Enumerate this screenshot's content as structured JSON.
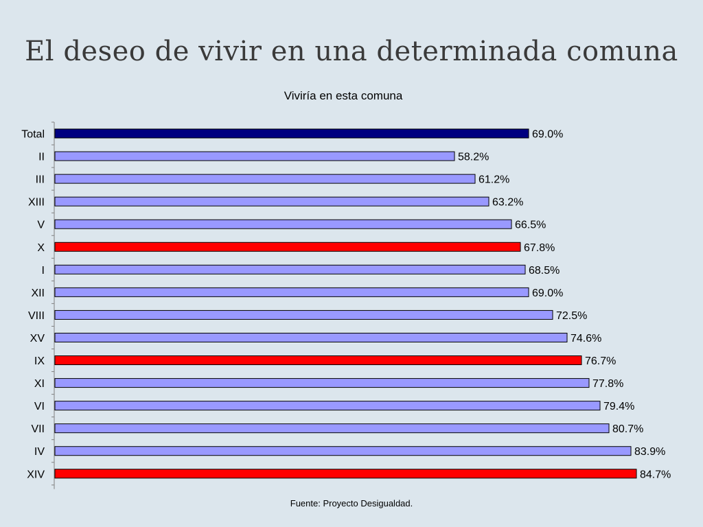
{
  "slide": {
    "title": "El deseo de vivir en una determinada comuna",
    "source": "Fuente: Proyecto Desigualdad."
  },
  "colors": {
    "default": "#9999ff",
    "highlight": "#ff0000",
    "total": "#000080",
    "border": "#000000",
    "background": "#dce6ed"
  },
  "chart_data": {
    "type": "bar",
    "orientation": "horizontal",
    "title": "Viviría en esta comuna",
    "xlim": [
      0,
      100
    ],
    "grid": false,
    "legend": "none",
    "categories": [
      "Total",
      "II",
      "III",
      "XIII",
      "V",
      "X",
      "I",
      "XII",
      "VIII",
      "XV",
      "IX",
      "XI",
      "VI",
      "VII",
      "IV",
      "XIV"
    ],
    "values": [
      69.0,
      58.2,
      61.2,
      63.2,
      66.5,
      67.8,
      68.5,
      69.0,
      72.5,
      74.6,
      76.7,
      77.8,
      79.4,
      80.7,
      83.9,
      84.7
    ],
    "labels": [
      "69.0%",
      "58.2%",
      "61.2%",
      "63.2%",
      "66.5%",
      "67.8%",
      "68.5%",
      "69.0%",
      "72.5%",
      "74.6%",
      "76.7%",
      "77.8%",
      "79.4%",
      "80.7%",
      "83.9%",
      "84.7%"
    ],
    "bar_colors": [
      "total",
      "default",
      "default",
      "default",
      "default",
      "highlight",
      "default",
      "default",
      "default",
      "default",
      "highlight",
      "default",
      "default",
      "default",
      "default",
      "highlight"
    ]
  }
}
